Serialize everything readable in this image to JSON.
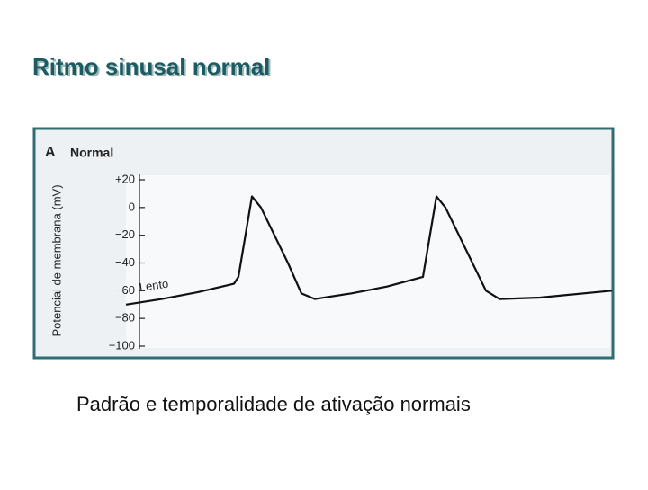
{
  "slide": {
    "title": "Ritmo sinusal normal",
    "caption": "Padrão e temporalidade de ativação normais"
  },
  "chart_data": {
    "type": "line",
    "panel_label": "A",
    "title": "Normal",
    "ylabel": "Potencial de membrana (mV)",
    "annotation": "Lento",
    "x": [
      0,
      40,
      80,
      120,
      125,
      140,
      150,
      165,
      180,
      195,
      210,
      250,
      290,
      330,
      345,
      355,
      370,
      385,
      400,
      415,
      460,
      540
    ],
    "values": [
      -70,
      -66,
      -61,
      -55,
      -50,
      8,
      0,
      -20,
      -40,
      -62,
      -66,
      -62,
      -57,
      -50,
      8,
      0,
      -20,
      -40,
      -60,
      -66,
      -65,
      -60
    ],
    "color": "#111111",
    "xlim": [
      0,
      540
    ],
    "ylim": [
      -100,
      20
    ],
    "yticks": [
      {
        "value": 20,
        "label": "+20"
      },
      0,
      {
        "value": -20,
        "label": "−20"
      },
      {
        "value": -40,
        "label": "−40"
      },
      {
        "value": -60,
        "label": "−60"
      },
      {
        "value": -80,
        "label": "−80"
      },
      {
        "value": -100,
        "label": "−100"
      }
    ]
  }
}
